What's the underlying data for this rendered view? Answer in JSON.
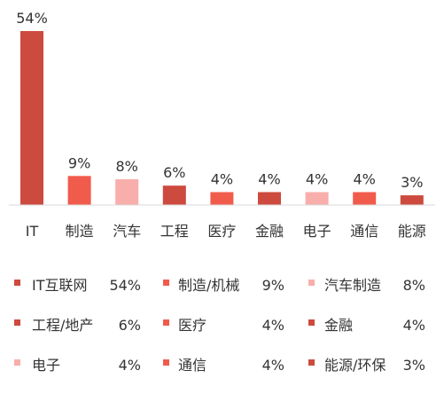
{
  "chart_data": {
    "type": "bar",
    "categories": [
      "IT",
      "制造",
      "汽车",
      "工程",
      "医疗",
      "金融",
      "电子",
      "通信",
      "能源"
    ],
    "values": [
      54,
      9,
      8,
      6,
      4,
      4,
      4,
      4,
      3
    ],
    "value_labels": [
      "54%",
      "9%",
      "8%",
      "6%",
      "4%",
      "4%",
      "4%",
      "4%",
      "3%"
    ],
    "bar_colors": [
      "#cc4a3e",
      "#f15b4c",
      "#f8aeab",
      "#cc4a3e",
      "#f15b4c",
      "#cc4a3e",
      "#f8aeab",
      "#f15b4c",
      "#cc4a3e"
    ],
    "ylim": [
      0,
      54
    ],
    "grid": false,
    "title": "",
    "xlabel": "",
    "ylabel": "",
    "legend": {
      "placement": "bottom",
      "items": [
        {
          "label": "IT互联网",
          "value": "54%",
          "color": "#cc4a3e"
        },
        {
          "label": "制造/机械",
          "value": "9%",
          "color": "#f15b4c"
        },
        {
          "label": "汽车制造",
          "value": "8%",
          "color": "#f8aeab"
        },
        {
          "label": "工程/地产",
          "value": "6%",
          "color": "#cc4a3e"
        },
        {
          "label": "医疗",
          "value": "4%",
          "color": "#f15b4c"
        },
        {
          "label": "金融",
          "value": "4%",
          "color": "#cc4a3e"
        },
        {
          "label": "电子",
          "value": "4%",
          "color": "#f8aeab"
        },
        {
          "label": "通信",
          "value": "4%",
          "color": "#f15b4c"
        },
        {
          "label": "能源/环保",
          "value": "3%",
          "color": "#cc4a3e"
        }
      ]
    }
  }
}
